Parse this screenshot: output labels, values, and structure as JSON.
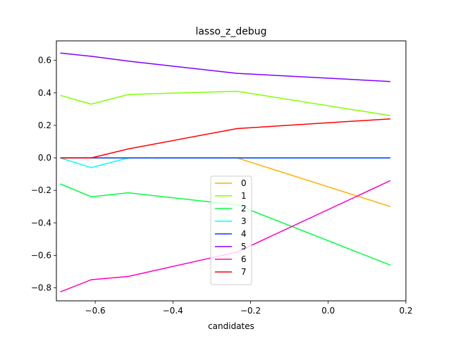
{
  "chart_data": {
    "type": "line",
    "title": "lasso_z_debug",
    "xlabel": "candidates",
    "ylabel": "",
    "xlim": [
      -0.7,
      0.2
    ],
    "ylim": [
      -0.88,
      0.72
    ],
    "xticks": [
      -0.6,
      -0.4,
      -0.2,
      0.0,
      0.2
    ],
    "xtick_labels": [
      "−0.6",
      "−0.4",
      "−0.2",
      "0.0",
      "0.2"
    ],
    "yticks": [
      -0.8,
      -0.6,
      -0.4,
      -0.2,
      0.0,
      0.2,
      0.4,
      0.6
    ],
    "ytick_labels": [
      "−0.8",
      "−0.6",
      "−0.4",
      "−0.2",
      "0.0",
      "0.2",
      "0.4",
      "0.6"
    ],
    "grid": false,
    "legend_position": "lower-center",
    "x": [
      -0.69,
      -0.61,
      -0.515,
      -0.235,
      0.16
    ],
    "series": [
      {
        "name": "0",
        "color": "#ffb000",
        "values": [
          0.0,
          0.0,
          0.0,
          0.0,
          -0.3
        ]
      },
      {
        "name": "1",
        "color": "#80ff00",
        "values": [
          0.385,
          0.33,
          0.39,
          0.41,
          0.26
        ]
      },
      {
        "name": "2",
        "color": "#00ff40",
        "values": [
          -0.16,
          -0.24,
          -0.215,
          -0.29,
          -0.66
        ]
      },
      {
        "name": "3",
        "color": "#00ffff",
        "values": [
          0.0,
          -0.06,
          0.0,
          0.0,
          0.0
        ]
      },
      {
        "name": "4",
        "color": "#0040ff",
        "values": [
          0.0,
          0.0,
          0.0,
          0.0,
          0.0
        ]
      },
      {
        "name": "5",
        "color": "#8000ff",
        "values": [
          0.645,
          0.625,
          0.595,
          0.52,
          0.47
        ]
      },
      {
        "name": "6",
        "color": "#ff00c0",
        "values": [
          -0.825,
          -0.75,
          -0.73,
          -0.58,
          -0.14
        ]
      },
      {
        "name": "7",
        "color": "#ff0000",
        "values": [
          0.0,
          0.0,
          0.055,
          0.18,
          0.24
        ]
      }
    ]
  }
}
